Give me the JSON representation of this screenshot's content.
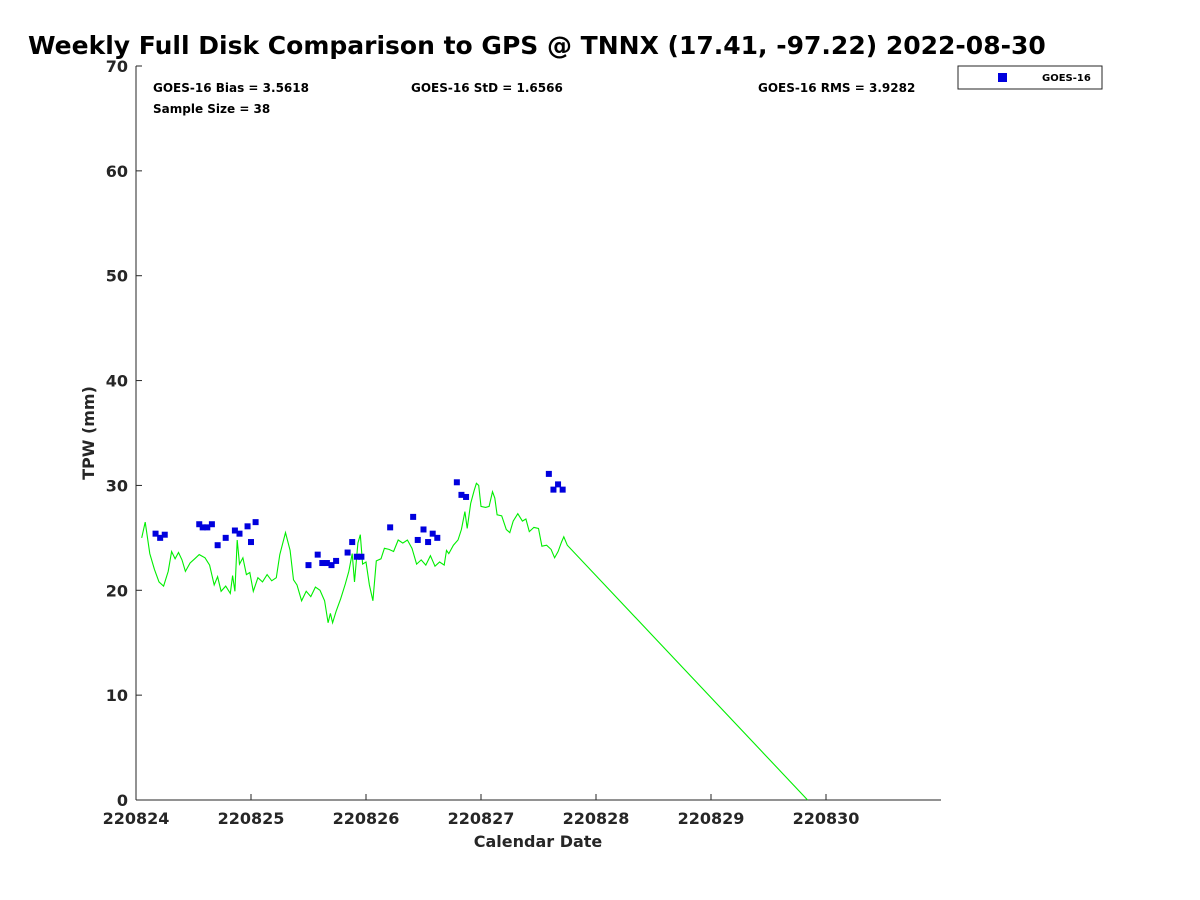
{
  "chart_data": {
    "type": "scatter",
    "title": "Weekly Full Disk Comparison to GPS @ TNNX (17.41, -97.22) 2022-08-30",
    "xlabel": "Calendar Date",
    "ylabel": "TPW (mm)",
    "xlim": [
      220824,
      220830.7
    ],
    "ylim": [
      0,
      70
    ],
    "x_ticks": [
      "220824",
      "220825",
      "220826",
      "220827",
      "220828",
      "220829",
      "220830"
    ],
    "y_ticks": [
      "0",
      "10",
      "20",
      "30",
      "40",
      "50",
      "60",
      "70"
    ],
    "grid": false,
    "legend_placement": "outside-top-right",
    "stats": {
      "bias": "GOES-16 Bias = 3.5618",
      "std": "GOES-16 StD = 1.6566",
      "rms": "GOES-16 RMS = 3.9282",
      "sample_size": "Sample Size = 38"
    },
    "series": [
      {
        "name": "GOES-16",
        "kind": "scatter",
        "marker": "square",
        "color": "#0000dd",
        "points": [
          [
            220824.17,
            25.4
          ],
          [
            220824.21,
            25.0
          ],
          [
            220824.25,
            25.3
          ],
          [
            220824.55,
            26.3
          ],
          [
            220824.58,
            26.0
          ],
          [
            220824.62,
            26.0
          ],
          [
            220824.66,
            26.3
          ],
          [
            220824.71,
            24.3
          ],
          [
            220824.78,
            25.0
          ],
          [
            220824.86,
            25.7
          ],
          [
            220824.9,
            25.4
          ],
          [
            220824.97,
            26.1
          ],
          [
            220825.0,
            24.6
          ],
          [
            220825.04,
            26.5
          ],
          [
            220825.5,
            22.4
          ],
          [
            220825.58,
            23.4
          ],
          [
            220825.62,
            22.6
          ],
          [
            220825.66,
            22.6
          ],
          [
            220825.7,
            22.4
          ],
          [
            220825.74,
            22.8
          ],
          [
            220825.84,
            23.6
          ],
          [
            220825.88,
            24.6
          ],
          [
            220825.92,
            23.2
          ],
          [
            220825.96,
            23.2
          ],
          [
            220826.21,
            26.0
          ],
          [
            220826.41,
            27.0
          ],
          [
            220826.45,
            24.8
          ],
          [
            220826.5,
            25.8
          ],
          [
            220826.54,
            24.6
          ],
          [
            220826.58,
            25.4
          ],
          [
            220826.62,
            25.0
          ],
          [
            220826.79,
            30.3
          ],
          [
            220826.83,
            29.1
          ],
          [
            220826.87,
            28.9
          ],
          [
            220827.59,
            31.1
          ],
          [
            220827.63,
            29.6
          ],
          [
            220827.67,
            30.1
          ],
          [
            220827.71,
            29.6
          ]
        ]
      },
      {
        "name": "",
        "kind": "line",
        "color": "#00ee00",
        "points": [
          [
            220824.05,
            25.0
          ],
          [
            220824.08,
            26.5
          ],
          [
            220824.12,
            23.5
          ],
          [
            220824.16,
            22.0
          ],
          [
            220824.2,
            20.8
          ],
          [
            220824.24,
            20.4
          ],
          [
            220824.28,
            21.8
          ],
          [
            220824.31,
            23.7
          ],
          [
            220824.34,
            23.0
          ],
          [
            220824.37,
            23.6
          ],
          [
            220824.4,
            22.9
          ],
          [
            220824.43,
            21.8
          ],
          [
            220824.47,
            22.6
          ],
          [
            220824.51,
            23.0
          ],
          [
            220824.55,
            23.4
          ],
          [
            220824.6,
            23.1
          ],
          [
            220824.64,
            22.4
          ],
          [
            220824.68,
            20.5
          ],
          [
            220824.71,
            21.3
          ],
          [
            220824.74,
            19.9
          ],
          [
            220824.78,
            20.4
          ],
          [
            220824.82,
            19.7
          ],
          [
            220824.84,
            21.4
          ],
          [
            220824.86,
            19.9
          ],
          [
            220824.88,
            24.8
          ],
          [
            220824.9,
            22.5
          ],
          [
            220824.93,
            23.1
          ],
          [
            220824.96,
            21.5
          ],
          [
            220824.99,
            21.7
          ],
          [
            220825.02,
            19.9
          ],
          [
            220825.06,
            21.2
          ],
          [
            220825.1,
            20.8
          ],
          [
            220825.14,
            21.5
          ],
          [
            220825.18,
            20.9
          ],
          [
            220825.22,
            21.2
          ],
          [
            220825.25,
            23.4
          ],
          [
            220825.3,
            25.5
          ],
          [
            220825.34,
            23.8
          ],
          [
            220825.37,
            21.0
          ],
          [
            220825.4,
            20.5
          ],
          [
            220825.44,
            19.0
          ],
          [
            220825.48,
            19.9
          ],
          [
            220825.52,
            19.4
          ],
          [
            220825.56,
            20.3
          ],
          [
            220825.6,
            20.0
          ],
          [
            220825.64,
            19.0
          ],
          [
            220825.67,
            16.9
          ],
          [
            220825.69,
            17.8
          ],
          [
            220825.71,
            16.9
          ],
          [
            220825.74,
            18.0
          ],
          [
            220825.78,
            19.2
          ],
          [
            220825.82,
            20.6
          ],
          [
            220825.85,
            21.8
          ],
          [
            220825.88,
            23.5
          ],
          [
            220825.9,
            20.8
          ],
          [
            220825.93,
            24.5
          ],
          [
            220825.95,
            25.3
          ],
          [
            220825.97,
            22.5
          ],
          [
            220826.0,
            22.7
          ],
          [
            220826.03,
            20.5
          ],
          [
            220826.06,
            19.0
          ],
          [
            220826.09,
            22.8
          ],
          [
            220826.13,
            23.0
          ],
          [
            220826.16,
            24.0
          ],
          [
            220826.2,
            23.9
          ],
          [
            220826.24,
            23.7
          ],
          [
            220826.28,
            24.8
          ],
          [
            220826.32,
            24.5
          ],
          [
            220826.36,
            24.8
          ],
          [
            220826.4,
            24.0
          ],
          [
            220826.44,
            22.5
          ],
          [
            220826.48,
            22.9
          ],
          [
            220826.52,
            22.4
          ],
          [
            220826.56,
            23.3
          ],
          [
            220826.6,
            22.3
          ],
          [
            220826.64,
            22.7
          ],
          [
            220826.68,
            22.4
          ],
          [
            220826.7,
            23.8
          ],
          [
            220826.72,
            23.5
          ],
          [
            220826.76,
            24.3
          ],
          [
            220826.8,
            24.8
          ],
          [
            220826.83,
            25.8
          ],
          [
            220826.86,
            27.5
          ],
          [
            220826.88,
            25.9
          ],
          [
            220826.91,
            28.3
          ],
          [
            220826.94,
            29.5
          ],
          [
            220826.96,
            30.2
          ],
          [
            220826.98,
            30.0
          ],
          [
            220827.0,
            28.0
          ],
          [
            220827.04,
            27.9
          ],
          [
            220827.07,
            28.0
          ],
          [
            220827.1,
            29.4
          ],
          [
            220827.12,
            28.8
          ],
          [
            220827.14,
            27.2
          ],
          [
            220827.18,
            27.1
          ],
          [
            220827.22,
            25.8
          ],
          [
            220827.25,
            25.5
          ],
          [
            220827.28,
            26.6
          ],
          [
            220827.32,
            27.3
          ],
          [
            220827.36,
            26.6
          ],
          [
            220827.39,
            26.8
          ],
          [
            220827.42,
            25.6
          ],
          [
            220827.46,
            26.0
          ],
          [
            220827.5,
            25.9
          ],
          [
            220827.53,
            24.2
          ],
          [
            220827.57,
            24.3
          ],
          [
            220827.61,
            23.9
          ],
          [
            220827.64,
            23.1
          ],
          [
            220827.67,
            23.7
          ],
          [
            220827.7,
            24.6
          ],
          [
            220827.72,
            25.1
          ],
          [
            220827.75,
            24.3
          ],
          [
            220829.84,
            0.0
          ]
        ]
      }
    ]
  }
}
